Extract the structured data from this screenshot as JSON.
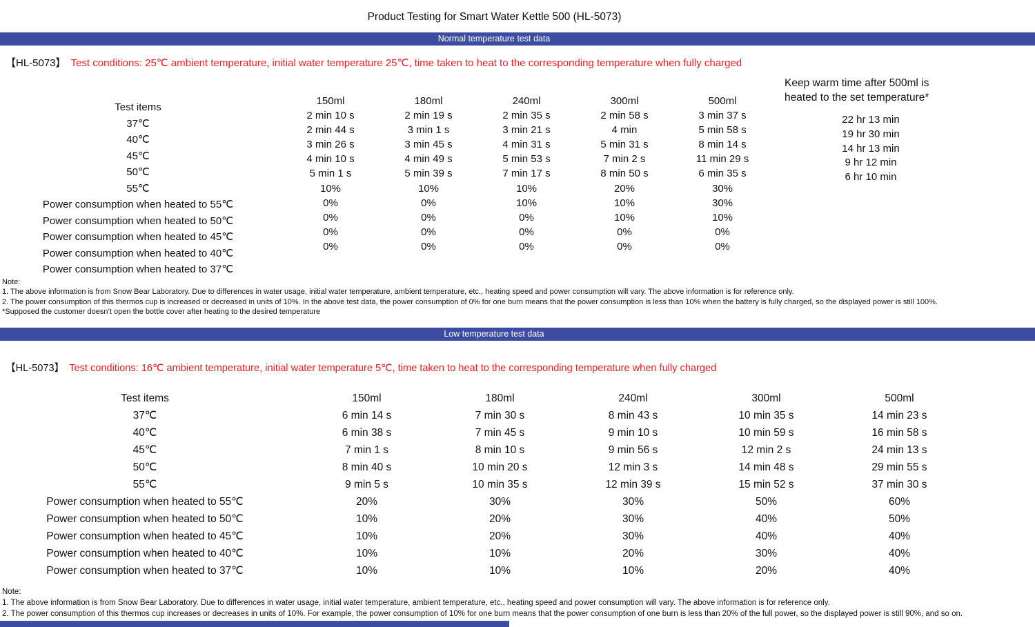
{
  "page_title": "Product Testing for Smart Water Kettle 500 (HL-5073)",
  "colors": {
    "banner_blue": "#3c4da1",
    "condition_red": "#ed1c24"
  },
  "section_normal": {
    "banner": "Normal temperature test data",
    "model": "【HL-5073】",
    "conditions": "Test conditions: 25℃ ambient temperature, initial water temperature 25℃, time taken to heat to the corresponding temperature when fully charged",
    "table": {
      "header_label": "Test items",
      "row_labels": [
        "37℃",
        "40℃",
        "45℃",
        "50℃",
        "55℃",
        "Power consumption when heated to 55℃",
        "Power consumption when heated to 50℃",
        "Power consumption when heated to 45℃",
        "Power consumption when heated to 40℃",
        "Power consumption when heated to 37℃"
      ],
      "columns": [
        {
          "label": "150ml",
          "values": [
            "2 min 10 s",
            "2 min 44 s",
            "3 min 26 s",
            "4 min 10 s",
            "5 min 1 s",
            "10%",
            "0%",
            "0%",
            "0%",
            "0%"
          ]
        },
        {
          "label": "180ml",
          "values": [
            "2 min 19 s",
            "3 min 1 s",
            "3 min 45 s",
            "4 min 49 s",
            "5 min 39 s",
            "10%",
            "0%",
            "0%",
            "0%",
            "0%"
          ]
        },
        {
          "label": "240ml",
          "values": [
            "2 min 35 s",
            "3 min 21 s",
            "4 min 31 s",
            "5 min 53 s",
            "7 min 17 s",
            "10%",
            "10%",
            "0%",
            "0%",
            "0%"
          ]
        },
        {
          "label": "300ml",
          "values": [
            "2 min 58 s",
            "4 min",
            "5 min 31 s",
            "7 min 2 s",
            "8 min 50 s",
            "20%",
            "10%",
            "10%",
            "0%",
            "0%"
          ]
        },
        {
          "label": "500ml",
          "values": [
            "3 min 37 s",
            "5 min 58 s",
            "8 min 14 s",
            "11 min 29 s",
            "6 min 35 s",
            "30%",
            "30%",
            "10%",
            "0%",
            "0%"
          ]
        }
      ],
      "keep_warm": {
        "title_lines": [
          "Keep warm time after 500ml is",
          "heated to the set temperature*"
        ],
        "values": [
          "22 hr 13 min",
          "19 hr 30 min",
          "14 hr 13 min",
          "9 hr 12 min",
          "6 hr 10 min"
        ]
      }
    },
    "notes": [
      "Note:",
      "1. The above information is from Snow Bear Laboratory. Due to differences in water usage, initial water temperature, ambient temperature, etc., heating speed and power consumption will vary. The above information is for reference only.",
      "2. The power consumption of this thermos cup is increased or decreased in units of 10%. In the above test data, the power consumption of 0% for one burn means that the power consumption is less than 10% when the battery is fully charged, so the displayed power is still 100%.",
      "*Supposed the customer doesn’t open the bottle cover after heating to the desired temperature"
    ]
  },
  "section_low": {
    "banner": "Low temperature test data",
    "model": "【HL-5073】",
    "conditions": "Test conditions: 16℃ ambient temperature, initial water temperature 5℃, time taken to heat to the corresponding temperature when fully charged",
    "table": {
      "header_label": "Test items",
      "row_labels": [
        "37℃",
        "40℃",
        "45℃",
        "50℃",
        "55℃",
        "Power consumption when heated to 55℃",
        "Power consumption when heated to 50℃",
        "Power consumption when heated to 45℃",
        "Power consumption when heated to 40℃",
        "Power consumption when heated to 37℃"
      ],
      "columns": [
        {
          "label": "150ml",
          "values": [
            "6 min 14 s",
            "6 min 38 s",
            "7 min 1 s",
            "8 min 40 s",
            "9 min 5 s",
            "20%",
            "10%",
            "10%",
            "10%",
            "10%"
          ]
        },
        {
          "label": "180ml",
          "values": [
            "7 min 30 s",
            "7 min 45 s",
            "8 min 10 s",
            "10 min 20 s",
            "10 min 35 s",
            "30%",
            "20%",
            "20%",
            "10%",
            "10%"
          ]
        },
        {
          "label": "240ml",
          "values": [
            "8 min 43 s",
            "9 min 10 s",
            "9 min 56 s",
            "12 min 3 s",
            "12 min 39 s",
            "30%",
            "30%",
            "30%",
            "20%",
            "10%"
          ]
        },
        {
          "label": "300ml",
          "values": [
            "10 min 35 s",
            "10 min 59 s",
            "12 min 2 s",
            "14 min 48 s",
            "15 min 52 s",
            "50%",
            "40%",
            "40%",
            "30%",
            "20%"
          ]
        },
        {
          "label": "500ml",
          "values": [
            "14 min 23 s",
            "16 min 58 s",
            "24 min 13 s",
            "29 min 55 s",
            "37 min 30 s",
            "60%",
            "50%",
            "40%",
            "40%",
            "40%"
          ]
        }
      ]
    },
    "notes": [
      "Note:",
      "1. The above information is from Snow Bear Laboratory. Due to differences in water usage, initial water temperature, ambient temperature, etc., heating speed and power consumption will vary. The above information is for reference only.",
      "2. The power consumption of this thermos cup increases or decreases in units of 10%. For example, the power consumption of 10% for one burn means that the power consumption of one burn is less than 20% of the full power, so the displayed power is still 90%, and so on."
    ]
  }
}
